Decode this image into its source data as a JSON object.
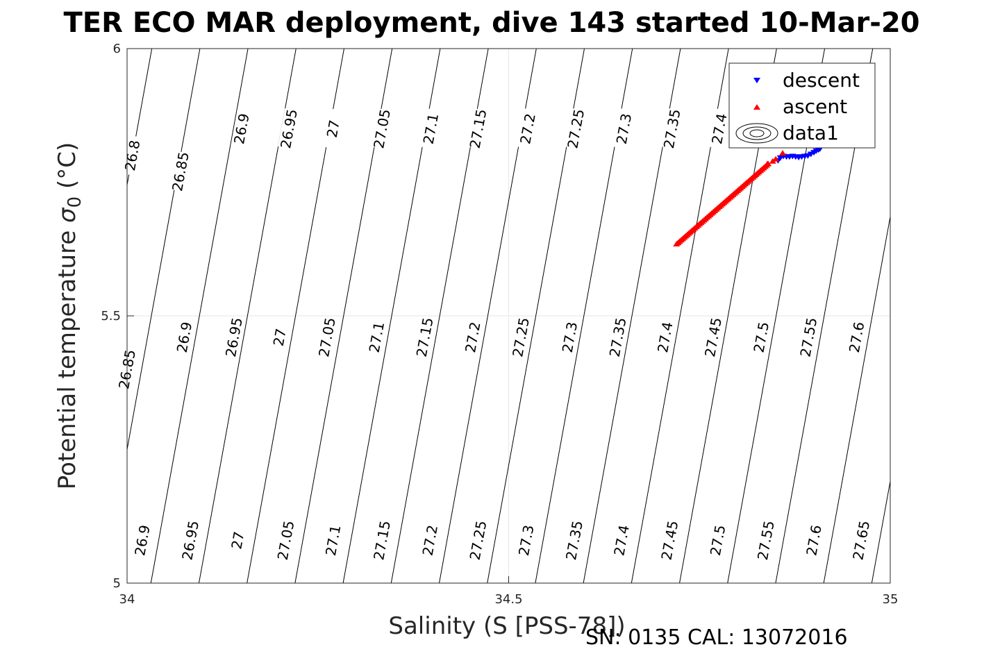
{
  "chart_data": {
    "type": "scatter",
    "title": "TER ECO MAR deployment, dive 143 started 10-Mar-20",
    "xlabel": "Salinity (S [PSS-78])",
    "ylabel_text": "Potential temperature ",
    "ylabel_sigma": "σ",
    "ylabel_sub": "0",
    "ylabel_unit": " (°C)",
    "xlim": [
      34,
      35
    ],
    "ylim": [
      5,
      6
    ],
    "xticks": [
      "34",
      "34.5",
      "35"
    ],
    "yticks": [
      "5",
      "5.5",
      "6"
    ],
    "grid": true,
    "legend_position": "top-right",
    "legend": [
      "descent",
      "ascent",
      "data1"
    ],
    "colors": {
      "descent": "#0000ff",
      "ascent": "#ff0000",
      "contour": "#000000",
      "grid": "#e6e6e6"
    },
    "footer": "SN: 0135  CAL: 13072016",
    "isopycnals": {
      "levels": [
        26.8,
        26.85,
        26.9,
        26.95,
        27.0,
        27.05,
        27.1,
        27.15,
        27.2,
        27.25,
        27.3,
        27.35,
        27.4,
        27.45,
        27.5,
        27.55,
        27.6,
        27.65
      ],
      "contour_labels": [
        {
          "text": "26.8",
          "s": 34.007,
          "t": 5.8
        },
        {
          "text": "26.85",
          "s": 34.07,
          "t": 5.77
        },
        {
          "text": "26.9",
          "s": 34.15,
          "t": 5.85
        },
        {
          "text": "26.95",
          "s": 34.212,
          "t": 5.85
        },
        {
          "text": "27",
          "s": 34.27,
          "t": 5.85
        },
        {
          "text": "27.05",
          "s": 34.334,
          "t": 5.85
        },
        {
          "text": "27.1",
          "s": 34.398,
          "t": 5.85
        },
        {
          "text": "27.15",
          "s": 34.46,
          "t": 5.85
        },
        {
          "text": "27.2",
          "s": 34.525,
          "t": 5.85
        },
        {
          "text": "27.25",
          "s": 34.588,
          "t": 5.85
        },
        {
          "text": "27.3",
          "s": 34.651,
          "t": 5.85
        },
        {
          "text": "27.35",
          "s": 34.714,
          "t": 5.85
        },
        {
          "text": "27.4",
          "s": 34.776,
          "t": 5.85
        },
        {
          "text": "26.85",
          "s": 34.0,
          "t": 5.4
        },
        {
          "text": "26.9",
          "s": 34.075,
          "t": 5.46
        },
        {
          "text": "26.95",
          "s": 34.14,
          "t": 5.46
        },
        {
          "text": "27",
          "s": 34.2,
          "t": 5.46
        },
        {
          "text": "27.05",
          "s": 34.262,
          "t": 5.46
        },
        {
          "text": "27.1",
          "s": 34.327,
          "t": 5.46
        },
        {
          "text": "27.15",
          "s": 34.39,
          "t": 5.46
        },
        {
          "text": "27.2",
          "s": 34.453,
          "t": 5.46
        },
        {
          "text": "27.25",
          "s": 34.516,
          "t": 5.46
        },
        {
          "text": "27.3",
          "s": 34.58,
          "t": 5.46
        },
        {
          "text": "27.35",
          "s": 34.643,
          "t": 5.46
        },
        {
          "text": "27.4",
          "s": 34.705,
          "t": 5.46
        },
        {
          "text": "27.45",
          "s": 34.768,
          "t": 5.46
        },
        {
          "text": "27.5",
          "s": 34.831,
          "t": 5.46
        },
        {
          "text": "27.55",
          "s": 34.893,
          "t": 5.46
        },
        {
          "text": "27.6",
          "s": 34.956,
          "t": 5.46
        },
        {
          "text": "26.9",
          "s": 34.02,
          "t": 5.08
        },
        {
          "text": "26.95",
          "s": 34.083,
          "t": 5.08
        },
        {
          "text": "27",
          "s": 34.145,
          "t": 5.08
        },
        {
          "text": "27.05",
          "s": 34.208,
          "t": 5.08
        },
        {
          "text": "27.1",
          "s": 34.27,
          "t": 5.08
        },
        {
          "text": "27.15",
          "s": 34.334,
          "t": 5.08
        },
        {
          "text": "27.2",
          "s": 34.397,
          "t": 5.08
        },
        {
          "text": "27.25",
          "s": 34.46,
          "t": 5.08
        },
        {
          "text": "27.3",
          "s": 34.523,
          "t": 5.08
        },
        {
          "text": "27.35",
          "s": 34.586,
          "t": 5.08
        },
        {
          "text": "27.4",
          "s": 34.648,
          "t": 5.08
        },
        {
          "text": "27.45",
          "s": 34.711,
          "t": 5.08
        },
        {
          "text": "27.5",
          "s": 34.774,
          "t": 5.08
        },
        {
          "text": "27.55",
          "s": 34.837,
          "t": 5.08
        },
        {
          "text": "27.6",
          "s": 34.9,
          "t": 5.08
        },
        {
          "text": "27.65",
          "s": 34.962,
          "t": 5.08
        }
      ]
    },
    "series": [
      {
        "name": "descent",
        "marker": "triangle-down",
        "points": [
          [
            34.853,
            5.79
          ],
          [
            34.856,
            5.795
          ],
          [
            34.86,
            5.798
          ],
          [
            34.864,
            5.797
          ],
          [
            34.868,
            5.797
          ],
          [
            34.872,
            5.798
          ],
          [
            34.876,
            5.797
          ],
          [
            34.88,
            5.796
          ],
          [
            34.884,
            5.797
          ],
          [
            34.888,
            5.798
          ],
          [
            34.892,
            5.799
          ],
          [
            34.896,
            5.802
          ],
          [
            34.9,
            5.805
          ],
          [
            34.903,
            5.808
          ],
          [
            34.906,
            5.81
          ],
          [
            34.908,
            5.812
          ]
        ]
      },
      {
        "name": "ascent",
        "marker": "triangle-up",
        "points": [
          [
            34.839,
            5.785
          ],
          [
            34.846,
            5.79
          ],
          [
            34.85,
            5.794
          ],
          [
            34.859,
            5.805
          ]
        ]
      }
    ]
  }
}
